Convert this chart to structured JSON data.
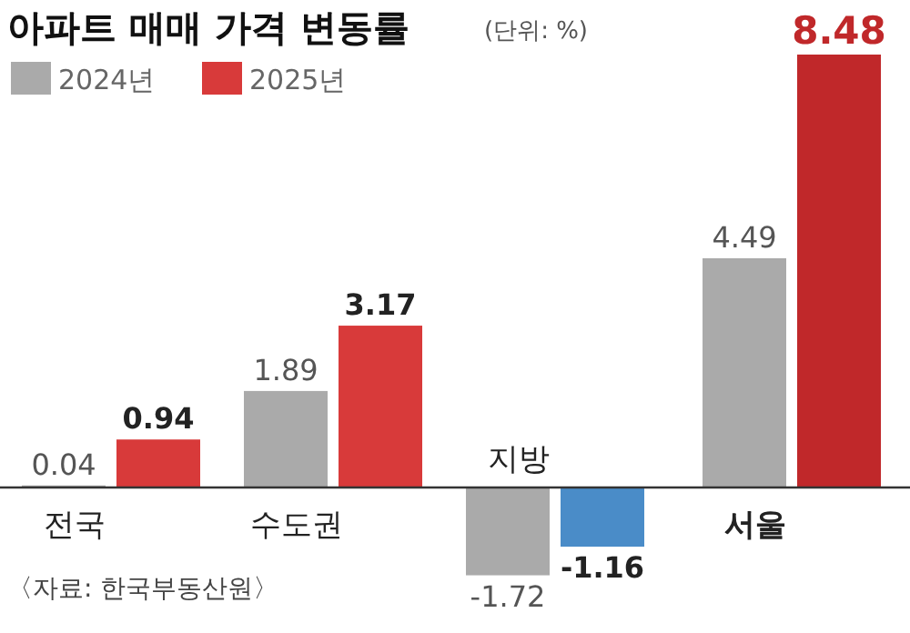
{
  "chart_data": {
    "type": "bar",
    "title": "아파트 매매 가격 변동률",
    "subtitle": "(단위: %)",
    "categories": [
      "전국",
      "수도권",
      "지방",
      "서울"
    ],
    "series": [
      {
        "name": "2024년",
        "color": "#aaaaaa",
        "values": [
          0.04,
          1.89,
          -1.72,
          4.49
        ]
      },
      {
        "name": "2025년",
        "color": "#d83a3a",
        "colors": [
          "#d83a3a",
          "#d83a3a",
          "#4a8cc8",
          "#c0282a"
        ],
        "values": [
          0.94,
          3.17,
          -1.16,
          8.48
        ]
      }
    ],
    "data_labels": true,
    "legend": "top left",
    "annotations": [
      "〈자료: 한국부동산원〉"
    ]
  }
}
